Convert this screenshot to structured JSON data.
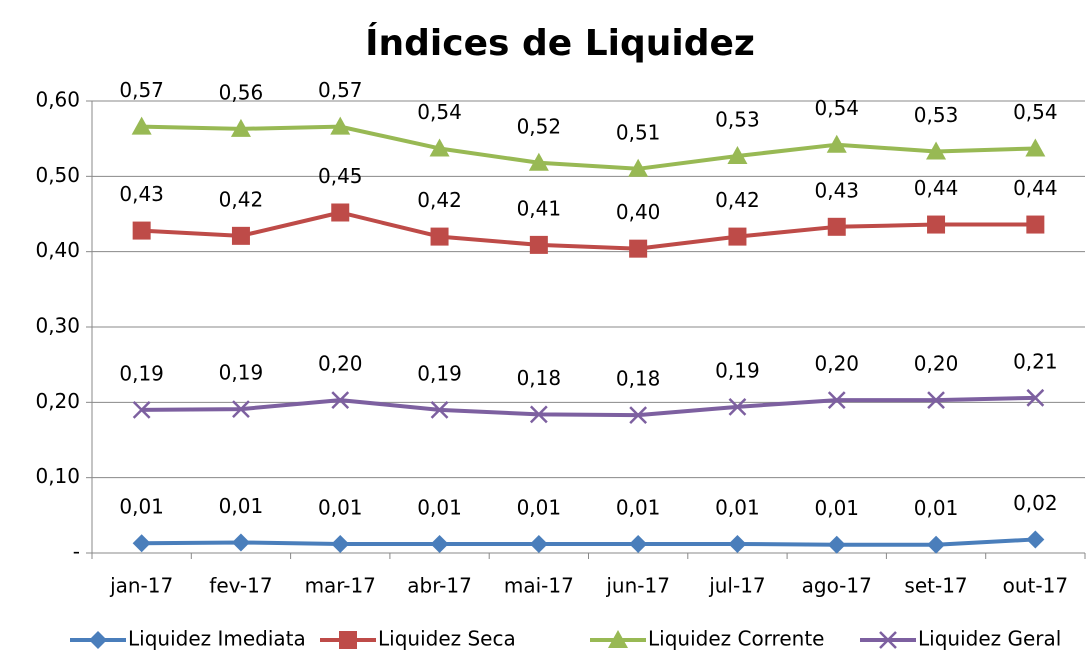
{
  "chart_data": {
    "type": "line",
    "title": "Índices de Liquidez",
    "categories": [
      "jan-17",
      "fev-17",
      "mar-17",
      "abr-17",
      "mai-17",
      "jun-17",
      "jul-17",
      "ago-17",
      "set-17",
      "out-17"
    ],
    "ylim": [
      0,
      0.6
    ],
    "yticks": [
      {
        "value": 0,
        "label": "-"
      },
      {
        "value": 0.1,
        "label": "0,10"
      },
      {
        "value": 0.2,
        "label": "0,20"
      },
      {
        "value": 0.3,
        "label": "0,30"
      },
      {
        "value": 0.4,
        "label": "0,40"
      },
      {
        "value": 0.5,
        "label": "0,50"
      },
      {
        "value": 0.6,
        "label": "0,60"
      }
    ],
    "grid": true,
    "legend": "bottom",
    "series": [
      {
        "name": "Liquidez Imediata",
        "color": "#4a7ebb",
        "marker": "diamond",
        "values": [
          0.013,
          0.014,
          0.012,
          0.012,
          0.012,
          0.012,
          0.012,
          0.011,
          0.011,
          0.018
        ],
        "value_labels": [
          "0,01",
          "0,01",
          "0,01",
          "0,01",
          "0,01",
          "0,01",
          "0,01",
          "0,01",
          "0,01",
          "0,02"
        ]
      },
      {
        "name": "Liquidez Seca",
        "color": "#be4b48",
        "marker": "square",
        "values": [
          0.428,
          0.421,
          0.452,
          0.42,
          0.409,
          0.404,
          0.42,
          0.433,
          0.436,
          0.436
        ],
        "value_labels": [
          "0,43",
          "0,42",
          "0,45",
          "0,42",
          "0,41",
          "0,40",
          "0,42",
          "0,43",
          "0,44",
          "0,44"
        ]
      },
      {
        "name": "Liquidez Corrente",
        "color": "#98b954",
        "marker": "triangle",
        "values": [
          0.566,
          0.563,
          0.566,
          0.537,
          0.518,
          0.51,
          0.527,
          0.542,
          0.533,
          0.537
        ],
        "value_labels": [
          "0,57",
          "0,56",
          "0,57",
          "0,54",
          "0,52",
          "0,51",
          "0,53",
          "0,54",
          "0,53",
          "0,54"
        ]
      },
      {
        "name": "Liquidez Geral",
        "color": "#7d60a0",
        "marker": "x",
        "values": [
          0.19,
          0.191,
          0.203,
          0.19,
          0.184,
          0.183,
          0.194,
          0.203,
          0.203,
          0.206
        ],
        "value_labels": [
          "0,19",
          "0,19",
          "0,20",
          "0,19",
          "0,18",
          "0,18",
          "0,19",
          "0,20",
          "0,20",
          "0,21"
        ]
      }
    ]
  }
}
